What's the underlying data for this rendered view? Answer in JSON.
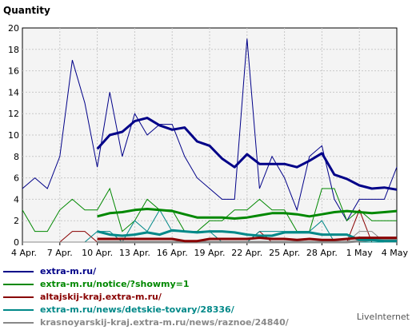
{
  "chart_data": {
    "type": "line",
    "ylabel": "Quantity",
    "ylim": [
      0,
      20
    ],
    "yticks": [
      0,
      2,
      4,
      6,
      8,
      10,
      12,
      14,
      16,
      18,
      20
    ],
    "x": [
      "4 Apr.",
      "5 Apr.",
      "6 Apr.",
      "7 Apr.",
      "8 Apr.",
      "9 Apr.",
      "10 Apr.",
      "11 Apr.",
      "12 Apr.",
      "13 Apr.",
      "14 Apr.",
      "15 Apr.",
      "16 Apr.",
      "17 Apr.",
      "18 Apr.",
      "19 Apr.",
      "20 Apr.",
      "21 Apr.",
      "22 Apr.",
      "23 Apr.",
      "24 Apr.",
      "25 Apr.",
      "26 Apr.",
      "27 Apr.",
      "28 Apr.",
      "29 Apr.",
      "30 Apr.",
      "1 May",
      "2 May",
      "3 May",
      "4 May"
    ],
    "xtick_labels": [
      "4 Apr.",
      "7 Apr.",
      "10 Apr.",
      "13 Apr.",
      "16 Apr.",
      "19 Apr.",
      "22 Apr.",
      "25 Apr.",
      "28 Apr.",
      "1 May",
      "4 May"
    ],
    "grid": true,
    "legend_position": "bottom",
    "series": [
      {
        "name": "extra-m.ru/",
        "color": "#000088",
        "values": [
          5,
          6,
          5,
          8,
          17,
          13,
          7,
          14,
          8,
          12,
          10,
          11,
          11,
          8,
          6,
          5,
          4,
          4,
          19,
          5,
          8,
          6,
          3,
          8,
          9,
          4,
          2,
          4,
          4,
          4,
          7
        ],
        "average": [
          null,
          null,
          null,
          null,
          null,
          null,
          8.7,
          10.0,
          10.3,
          11.3,
          11.6,
          10.9,
          10.5,
          10.7,
          9.4,
          9.0,
          7.8,
          7.0,
          8.2,
          7.3,
          7.3,
          7.3,
          7.0,
          7.6,
          8.3,
          6.3,
          5.9,
          5.3,
          5.0,
          5.1,
          4.9
        ]
      },
      {
        "name": "extra-m.ru/notice/?showmy=1",
        "color": "#008800",
        "values": [
          3,
          1,
          1,
          3,
          4,
          3,
          3,
          5,
          1,
          2,
          4,
          3,
          3,
          1,
          1,
          2,
          2,
          3,
          3,
          4,
          3,
          3,
          1,
          1,
          5,
          5,
          2,
          3,
          2,
          2,
          2
        ],
        "average": [
          null,
          null,
          null,
          null,
          null,
          null,
          2.4,
          2.7,
          2.8,
          3.0,
          3.1,
          3.0,
          2.9,
          2.6,
          2.3,
          2.3,
          2.3,
          2.2,
          2.3,
          2.5,
          2.7,
          2.7,
          2.6,
          2.4,
          2.6,
          2.8,
          2.9,
          2.8,
          2.7,
          2.8,
          2.9
        ]
      },
      {
        "name": "altajskij-kraj.extra-m.ru/",
        "color": "#880000",
        "values": [
          0,
          0,
          0,
          0,
          1,
          1,
          0,
          0,
          0,
          0,
          0,
          0,
          0,
          0,
          0,
          0,
          0,
          0,
          0,
          1,
          0,
          0,
          0,
          0,
          0,
          0,
          0,
          3,
          0,
          0,
          0
        ],
        "average": [
          null,
          null,
          null,
          null,
          null,
          null,
          0.3,
          0.3,
          0.3,
          0.3,
          0.3,
          0.3,
          0.3,
          0.1,
          0.1,
          0.3,
          0.3,
          0.3,
          0.3,
          0.4,
          0.3,
          0.3,
          0.2,
          0.3,
          0.2,
          0.2,
          0.3,
          0.4,
          0.4,
          0.4,
          0.4
        ]
      },
      {
        "name": "extra-m.ru/news/detskie-tovary/28336/",
        "color": "#008888",
        "values": [
          0,
          0,
          0,
          0,
          0,
          0,
          1,
          1,
          0,
          2,
          1,
          3,
          1,
          1,
          1,
          1,
          0,
          0,
          0,
          1,
          1,
          1,
          1,
          1,
          2,
          0,
          0,
          0,
          0,
          0,
          0
        ],
        "average": [
          null,
          null,
          null,
          null,
          null,
          null,
          1.0,
          0.7,
          0.6,
          0.7,
          0.9,
          0.7,
          1.1,
          1.0,
          0.9,
          1.0,
          1.0,
          0.9,
          0.7,
          0.6,
          0.6,
          0.9,
          0.9,
          0.9,
          0.7,
          0.7,
          0.7,
          0.2,
          0.2,
          0.1,
          0.1
        ]
      },
      {
        "name": "krasnoyarskij-kraj.extra-m.ru/news/raznoe/24840/",
        "color": "#888888",
        "values": [
          0,
          0,
          0,
          0,
          0,
          0,
          0,
          0,
          0,
          0,
          0,
          0,
          0,
          0,
          0,
          0,
          0,
          0,
          0,
          0,
          0,
          0,
          0,
          0,
          0,
          0,
          0,
          1,
          1,
          0,
          0
        ],
        "average": [
          null,
          null,
          null,
          null,
          null,
          null,
          0,
          0,
          0,
          0,
          0,
          0,
          0,
          0,
          0,
          0,
          0,
          0,
          0,
          0,
          0,
          0,
          0,
          0,
          0,
          0,
          0,
          0.1,
          0.2,
          0.2,
          0.2
        ]
      }
    ]
  },
  "watermark": "LiveInternet"
}
